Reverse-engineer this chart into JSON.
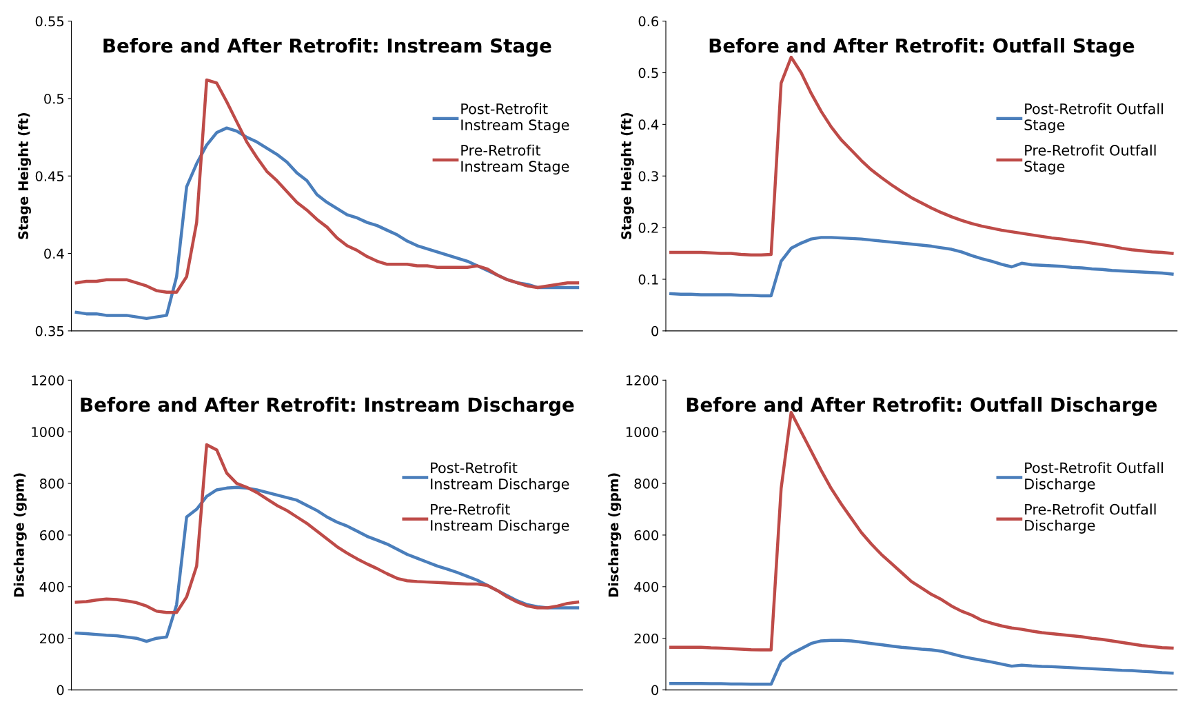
{
  "chart_data": [
    {
      "type": "line",
      "title": "Before and After Retrofit: Instream Stage",
      "ylabel": "Stage Height (ft)",
      "categories": [
        null,
        null,
        null,
        null,
        null,
        null,
        null,
        null,
        null,
        null,
        null,
        null,
        null,
        null,
        null,
        null,
        null,
        null,
        null,
        null,
        null,
        null,
        null,
        null,
        null,
        null,
        null,
        null,
        null,
        null,
        null,
        null,
        null,
        null,
        null,
        null,
        null,
        null,
        null,
        null,
        null,
        null,
        null,
        null,
        null,
        null,
        null,
        null,
        null,
        null,
        null
      ],
      "ylim": [
        0.35,
        0.55
      ],
      "yticks": [
        0.35,
        0.4,
        0.45,
        0.5,
        0.55
      ],
      "grid": false,
      "legend": "right",
      "tick_labels": "y",
      "marker": "none",
      "line_style": "solid",
      "series": [
        {
          "name": "Post-Retrofit\nInstream Stage",
          "color": "#4a7ebb",
          "values": [
            0.362,
            0.361,
            0.361,
            0.36,
            0.36,
            0.36,
            0.359,
            0.358,
            0.359,
            0.36,
            0.385,
            0.443,
            0.458,
            0.47,
            0.478,
            0.481,
            0.479,
            0.475,
            0.472,
            0.468,
            0.464,
            0.459,
            0.452,
            0.447,
            0.438,
            0.433,
            0.429,
            0.425,
            0.423,
            0.42,
            0.418,
            0.415,
            0.412,
            0.408,
            0.405,
            0.403,
            0.401,
            0.399,
            0.397,
            0.395,
            0.392,
            0.389,
            0.386,
            0.383,
            0.381,
            0.38,
            0.378,
            0.378,
            0.378,
            0.378,
            0.378
          ]
        },
        {
          "name": "Pre-Retrofit\nInstream Stage",
          "color": "#be4b48",
          "values": [
            0.381,
            0.382,
            0.382,
            0.383,
            0.383,
            0.383,
            0.381,
            0.379,
            0.376,
            0.375,
            0.375,
            0.385,
            0.42,
            0.512,
            0.51,
            0.498,
            0.485,
            0.472,
            0.462,
            0.453,
            0.447,
            0.44,
            0.433,
            0.428,
            0.422,
            0.417,
            0.41,
            0.405,
            0.402,
            0.398,
            0.395,
            0.393,
            0.393,
            0.393,
            0.392,
            0.392,
            0.391,
            0.391,
            0.391,
            0.391,
            0.392,
            0.39,
            0.386,
            0.383,
            0.381,
            0.379,
            0.378,
            0.379,
            0.38,
            0.381,
            0.381
          ]
        }
      ]
    },
    {
      "type": "line",
      "title": "Before and After Retrofit: Outfall Stage",
      "ylabel": "Stage Height (ft)",
      "categories": [
        null,
        null,
        null,
        null,
        null,
        null,
        null,
        null,
        null,
        null,
        null,
        null,
        null,
        null,
        null,
        null,
        null,
        null,
        null,
        null,
        null,
        null,
        null,
        null,
        null,
        null,
        null,
        null,
        null,
        null,
        null,
        null,
        null,
        null,
        null,
        null,
        null,
        null,
        null,
        null,
        null,
        null,
        null,
        null,
        null,
        null,
        null,
        null,
        null,
        null,
        null
      ],
      "ylim": [
        0,
        0.6
      ],
      "yticks": [
        0,
        0.1,
        0.2,
        0.3,
        0.4,
        0.5,
        0.6
      ],
      "grid": false,
      "legend": "right",
      "tick_labels": "y",
      "marker": "none",
      "line_style": "solid",
      "series": [
        {
          "name": "Post-Retrofit Outfall\nStage",
          "color": "#4a7ebb",
          "values": [
            0.072,
            0.071,
            0.071,
            0.07,
            0.07,
            0.07,
            0.07,
            0.069,
            0.069,
            0.068,
            0.068,
            0.135,
            0.16,
            0.17,
            0.178,
            0.181,
            0.181,
            0.18,
            0.179,
            0.178,
            0.176,
            0.174,
            0.172,
            0.17,
            0.168,
            0.166,
            0.164,
            0.161,
            0.158,
            0.153,
            0.146,
            0.14,
            0.135,
            0.129,
            0.124,
            0.131,
            0.128,
            0.127,
            0.126,
            0.125,
            0.123,
            0.122,
            0.12,
            0.119,
            0.117,
            0.116,
            0.115,
            0.114,
            0.113,
            0.112,
            0.11
          ]
        },
        {
          "name": "Pre-Retrofit Outfall\nStage",
          "color": "#be4b48",
          "values": [
            0.152,
            0.152,
            0.152,
            0.152,
            0.151,
            0.15,
            0.15,
            0.148,
            0.147,
            0.147,
            0.148,
            0.48,
            0.53,
            0.5,
            0.46,
            0.425,
            0.395,
            0.37,
            0.35,
            0.33,
            0.312,
            0.297,
            0.283,
            0.27,
            0.258,
            0.248,
            0.238,
            0.229,
            0.221,
            0.214,
            0.208,
            0.203,
            0.199,
            0.195,
            0.192,
            0.189,
            0.186,
            0.183,
            0.18,
            0.178,
            0.175,
            0.173,
            0.17,
            0.167,
            0.164,
            0.16,
            0.157,
            0.155,
            0.153,
            0.152,
            0.15
          ]
        }
      ]
    },
    {
      "type": "line",
      "title": "Before and After Retrofit: Instream Discharge",
      "ylabel": "Discharge (gpm)",
      "categories": [
        null,
        null,
        null,
        null,
        null,
        null,
        null,
        null,
        null,
        null,
        null,
        null,
        null,
        null,
        null,
        null,
        null,
        null,
        null,
        null,
        null,
        null,
        null,
        null,
        null,
        null,
        null,
        null,
        null,
        null,
        null,
        null,
        null,
        null,
        null,
        null,
        null,
        null,
        null,
        null,
        null,
        null,
        null,
        null,
        null,
        null,
        null,
        null,
        null,
        null,
        null
      ],
      "ylim": [
        0,
        1200
      ],
      "yticks": [
        0,
        200,
        400,
        600,
        800,
        1000,
        1200
      ],
      "grid": false,
      "legend": "right",
      "tick_labels": "y",
      "marker": "none",
      "line_style": "solid",
      "series": [
        {
          "name": "Post-Retrofit\nInstream Discharge",
          "color": "#4a7ebb",
          "values": [
            220,
            218,
            215,
            212,
            210,
            205,
            200,
            188,
            200,
            205,
            330,
            670,
            700,
            750,
            775,
            782,
            785,
            782,
            775,
            765,
            755,
            745,
            735,
            715,
            695,
            670,
            650,
            635,
            615,
            595,
            580,
            565,
            545,
            525,
            510,
            495,
            480,
            468,
            455,
            440,
            425,
            405,
            385,
            365,
            345,
            330,
            322,
            318,
            318,
            318,
            318
          ]
        },
        {
          "name": "Pre-Retrofit\nInstream Discharge",
          "color": "#be4b48",
          "values": [
            340,
            342,
            348,
            352,
            350,
            345,
            338,
            325,
            305,
            300,
            300,
            360,
            480,
            950,
            930,
            840,
            800,
            785,
            765,
            740,
            715,
            695,
            670,
            645,
            615,
            585,
            555,
            530,
            508,
            488,
            470,
            450,
            432,
            423,
            420,
            418,
            416,
            414,
            412,
            410,
            410,
            405,
            385,
            360,
            340,
            325,
            318,
            318,
            325,
            335,
            340
          ]
        }
      ]
    },
    {
      "type": "line",
      "title": "Before and After Retrofit: Outfall Discharge",
      "ylabel": "Discharge (gpm)",
      "categories": [
        null,
        null,
        null,
        null,
        null,
        null,
        null,
        null,
        null,
        null,
        null,
        null,
        null,
        null,
        null,
        null,
        null,
        null,
        null,
        null,
        null,
        null,
        null,
        null,
        null,
        null,
        null,
        null,
        null,
        null,
        null,
        null,
        null,
        null,
        null,
        null,
        null,
        null,
        null,
        null,
        null,
        null,
        null,
        null,
        null,
        null,
        null,
        null,
        null,
        null,
        null
      ],
      "ylim": [
        0,
        1200
      ],
      "yticks": [
        0,
        200,
        400,
        600,
        800,
        1000,
        1200
      ],
      "grid": false,
      "legend": "right",
      "tick_labels": "y",
      "marker": "none",
      "line_style": "solid",
      "series": [
        {
          "name": "Post-Retrofit Outfall\nDischarge",
          "color": "#4a7ebb",
          "values": [
            25,
            25,
            25,
            25,
            24,
            24,
            23,
            23,
            22,
            22,
            22,
            110,
            140,
            160,
            180,
            190,
            192,
            192,
            190,
            185,
            180,
            175,
            170,
            165,
            162,
            158,
            155,
            150,
            140,
            130,
            122,
            115,
            108,
            100,
            92,
            96,
            93,
            91,
            90,
            88,
            86,
            84,
            82,
            80,
            78,
            76,
            75,
            72,
            70,
            67,
            65
          ]
        },
        {
          "name": "Pre-Retrofit Outfall\nDischarge",
          "color": "#be4b48",
          "values": [
            165,
            165,
            165,
            165,
            163,
            162,
            160,
            158,
            156,
            155,
            155,
            780,
            1075,
            1000,
            925,
            850,
            780,
            720,
            665,
            610,
            565,
            525,
            490,
            455,
            420,
            395,
            370,
            350,
            325,
            305,
            290,
            270,
            258,
            248,
            240,
            235,
            228,
            222,
            218,
            214,
            210,
            206,
            200,
            196,
            190,
            184,
            178,
            172,
            168,
            164,
            162
          ]
        }
      ]
    }
  ]
}
